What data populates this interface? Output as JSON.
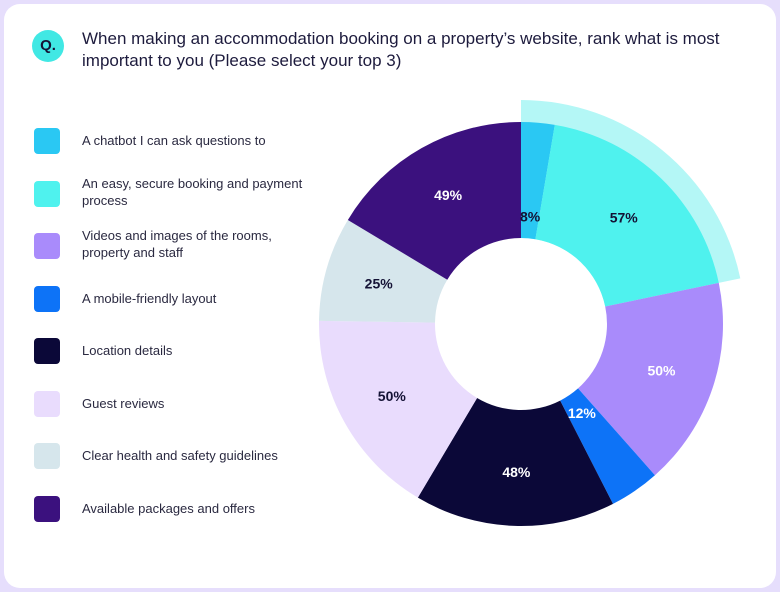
{
  "header": {
    "badge": "Q.",
    "question": "When making an accommodation booking on a property’s website, rank what is most important to you (Please select your top 3)"
  },
  "colors": {
    "highlight_band": "#b4f7f6",
    "background": "#e6defc"
  },
  "chart_data": {
    "type": "pie",
    "style": "donut, highlighted slice pulled out",
    "legend_position": "left",
    "title": "",
    "categories": [
      "A chatbot I can ask questions to",
      "An easy, secure booking and payment process",
      "Videos and images of the rooms, property and staff",
      "A mobile-friendly layout",
      "Location details",
      "Guest reviews",
      "Clear health and safety guidelines",
      "Available packages and offers"
    ],
    "values": [
      8,
      57,
      50,
      12,
      48,
      50,
      25,
      49
    ],
    "labels": [
      "8%",
      "57%",
      "50%",
      "12%",
      "48%",
      "50%",
      "25%",
      "49%"
    ],
    "colors": [
      "#2ac8f3",
      "#4ff2ee",
      "#a98bfb",
      "#0d73f7",
      "#0b0838",
      "#e9dcfd",
      "#d6e6ec",
      "#3b117e"
    ],
    "label_colors": [
      "#141235",
      "#141235",
      "#ffffff",
      "#ffffff",
      "#ffffff",
      "#141235",
      "#141235",
      "#ffffff"
    ],
    "highlighted": [
      "A chatbot I can ask questions to",
      "An easy, secure booking and payment process"
    ]
  }
}
